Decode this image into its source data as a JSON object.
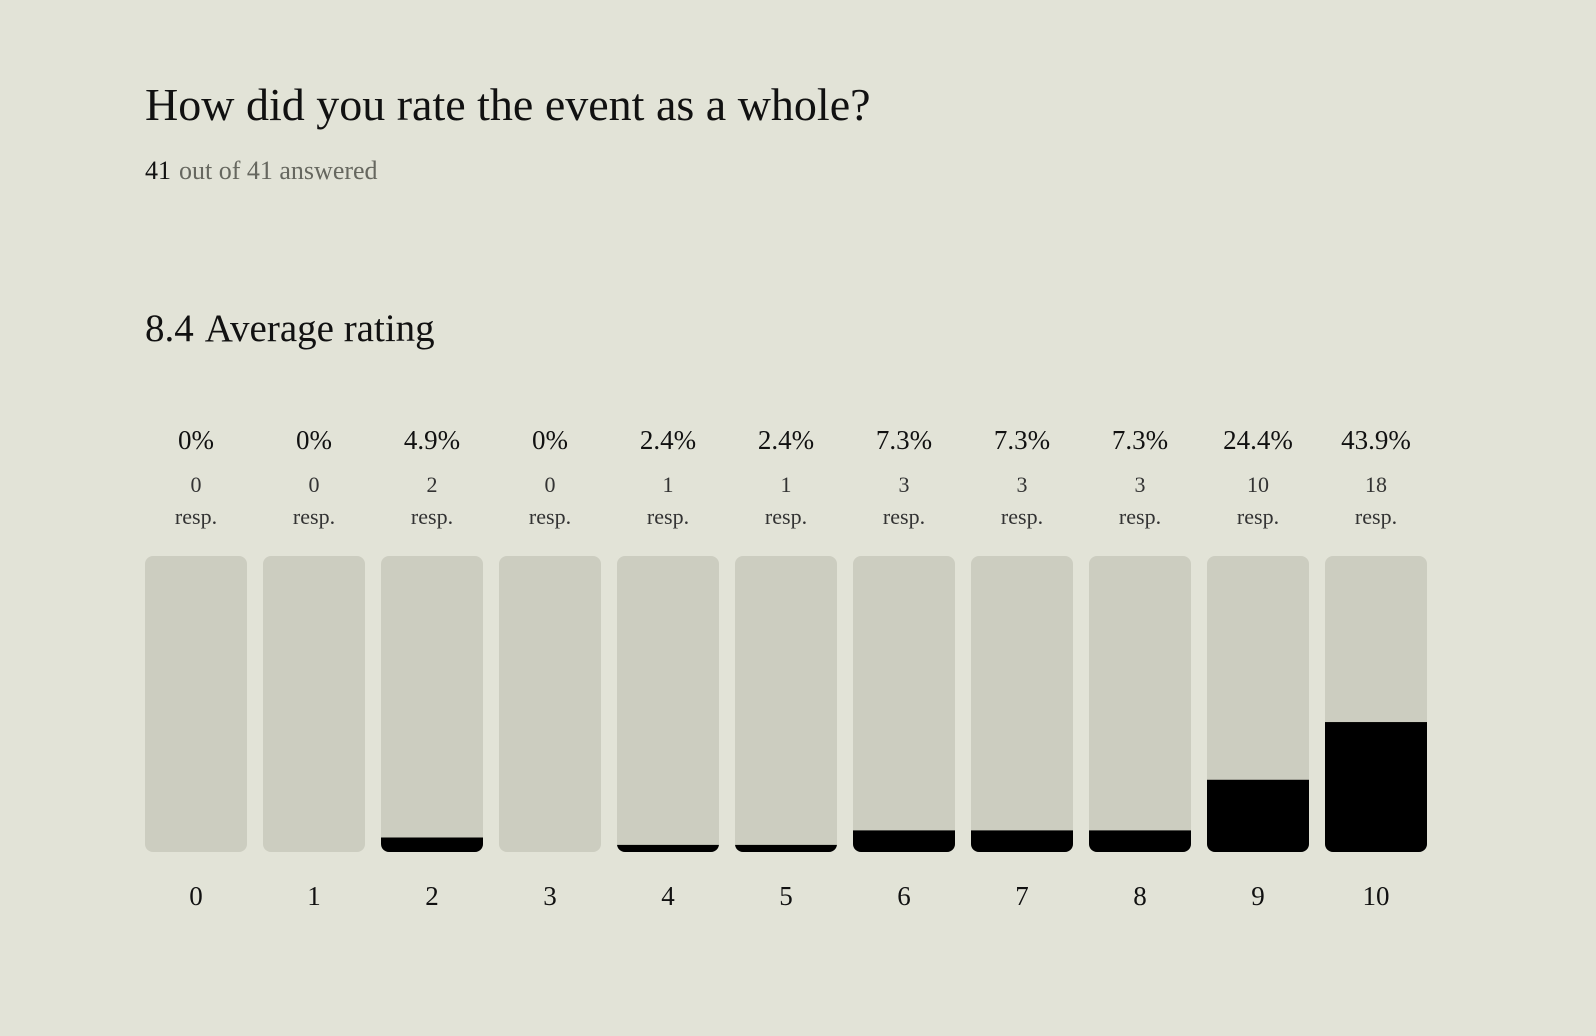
{
  "chart_data": {
    "type": "bar",
    "title": "How did you rate the event as a whole?",
    "answered_count": 41,
    "subtitle": "out of 41 answered",
    "average": 8.4,
    "average_label": "Average rating",
    "categories": [
      "0",
      "1",
      "2",
      "3",
      "4",
      "5",
      "6",
      "7",
      "8",
      "9",
      "10"
    ],
    "values": [
      0,
      0,
      4.9,
      0,
      2.4,
      2.4,
      7.3,
      7.3,
      7.3,
      24.4,
      43.9
    ],
    "value_labels": [
      "0%",
      "0%",
      "4.9%",
      "0%",
      "2.4%",
      "2.4%",
      "7.3%",
      "7.3%",
      "7.3%",
      "24.4%",
      "43.9%"
    ],
    "counts": [
      0,
      0,
      2,
      0,
      1,
      1,
      3,
      3,
      3,
      10,
      18
    ],
    "count_unit": "resp.",
    "ylim": [
      0,
      100
    ],
    "color": "#000000",
    "track_color": "#cccdc0"
  }
}
